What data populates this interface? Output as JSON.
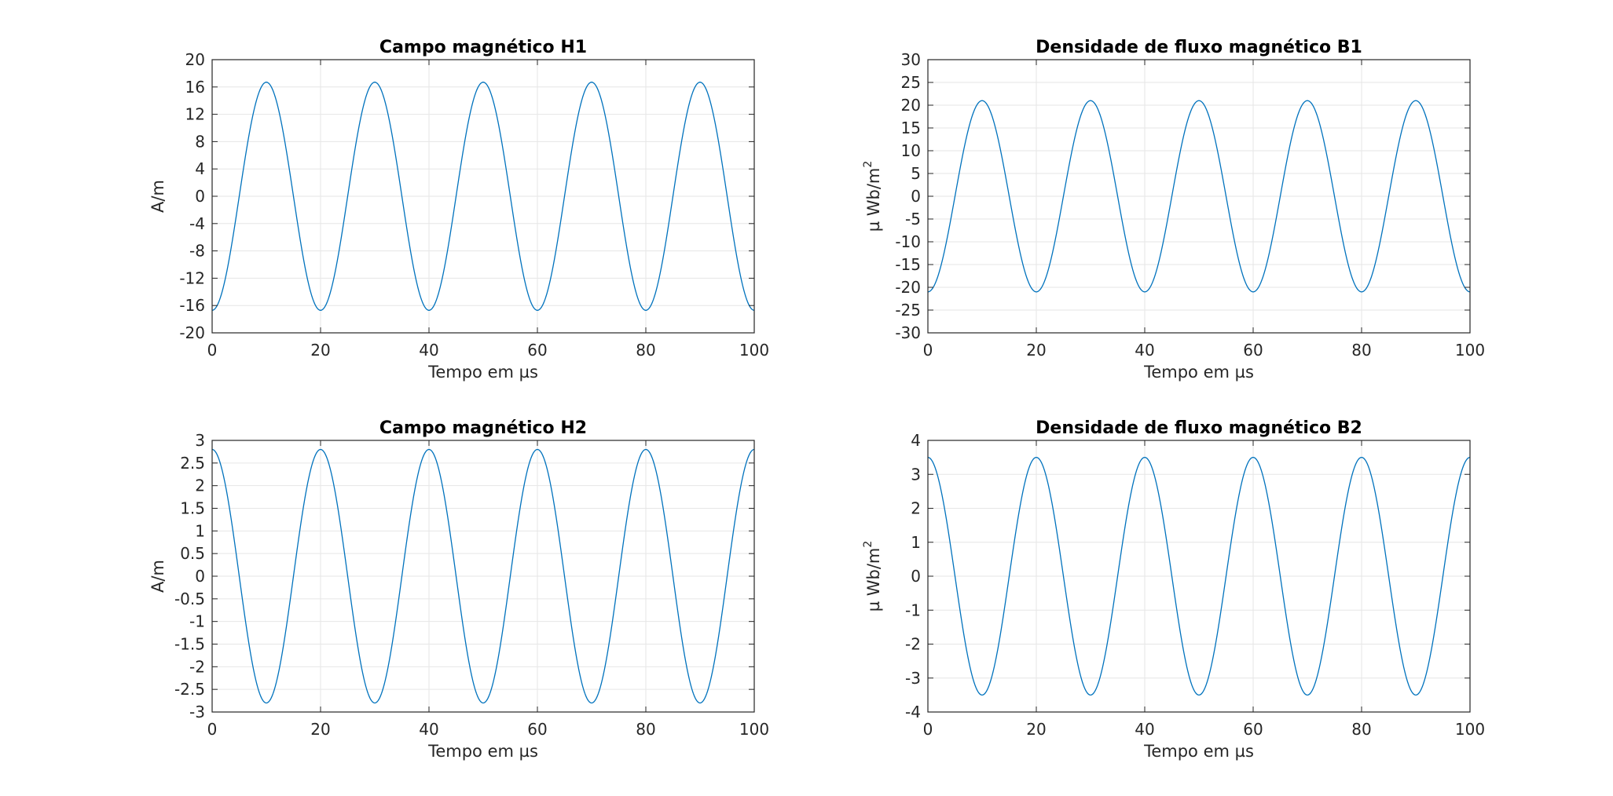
{
  "chart_data": [
    {
      "type": "line",
      "title": "Campo magnético H1",
      "xlabel": "Tempo em µs",
      "ylabel": "A/m",
      "ylabel_sup": "",
      "xlim": [
        0,
        100
      ],
      "ylim": [
        -20,
        20
      ],
      "xticks": [
        0,
        20,
        40,
        60,
        80,
        100
      ],
      "yticks": [
        -20,
        -16,
        -12,
        -8,
        -4,
        0,
        4,
        8,
        12,
        16,
        20
      ],
      "grid": true,
      "series": [
        {
          "amplitude": 16.7,
          "period": 20,
          "phase_deg": 180,
          "x": [
            0,
            10,
            20,
            30,
            40,
            50,
            60,
            70,
            80,
            90,
            100
          ],
          "y": [
            -16.7,
            16.7,
            -16.7,
            16.7,
            -16.7,
            16.7,
            -16.7,
            16.7,
            -16.7,
            16.7,
            -16.7
          ]
        }
      ]
    },
    {
      "type": "line",
      "title": "Densidade de fluxo magnético B1",
      "xlabel": "Tempo em µs",
      "ylabel": "µ Wb/m",
      "ylabel_sup": "2",
      "xlim": [
        0,
        100
      ],
      "ylim": [
        -30,
        30
      ],
      "xticks": [
        0,
        20,
        40,
        60,
        80,
        100
      ],
      "yticks": [
        -30,
        -25,
        -20,
        -15,
        -10,
        -5,
        0,
        5,
        10,
        15,
        20,
        25,
        30
      ],
      "grid": true,
      "series": [
        {
          "amplitude": 21,
          "period": 20,
          "phase_deg": 180,
          "x": [
            0,
            10,
            20,
            30,
            40,
            50,
            60,
            70,
            80,
            90,
            100
          ],
          "y": [
            -21,
            21,
            -21,
            21,
            -21,
            21,
            -21,
            21,
            -21,
            21,
            -21
          ]
        }
      ]
    },
    {
      "type": "line",
      "title": "Campo magnético H2",
      "xlabel": "Tempo em µs",
      "ylabel": "A/m",
      "ylabel_sup": "",
      "xlim": [
        0,
        100
      ],
      "ylim": [
        -3,
        3
      ],
      "xticks": [
        0,
        20,
        40,
        60,
        80,
        100
      ],
      "yticks": [
        -3,
        -2.5,
        -2,
        -1.5,
        -1,
        -0.5,
        0,
        0.5,
        1,
        1.5,
        2,
        2.5,
        3
      ],
      "grid": true,
      "series": [
        {
          "amplitude": 2.8,
          "period": 20,
          "phase_deg": 0,
          "x": [
            0,
            10,
            20,
            30,
            40,
            50,
            60,
            70,
            80,
            90,
            100
          ],
          "y": [
            2.8,
            -2.8,
            2.8,
            -2.8,
            2.8,
            -2.8,
            2.8,
            -2.8,
            2.8,
            -2.8,
            2.8
          ]
        }
      ]
    },
    {
      "type": "line",
      "title": "Densidade de fluxo magnético B2",
      "xlabel": "Tempo em µs",
      "ylabel": "µ Wb/m",
      "ylabel_sup": "2",
      "xlim": [
        0,
        100
      ],
      "ylim": [
        -4,
        4
      ],
      "xticks": [
        0,
        20,
        40,
        60,
        80,
        100
      ],
      "yticks": [
        -4,
        -3,
        -2,
        -1,
        0,
        1,
        2,
        3,
        4
      ],
      "grid": true,
      "series": [
        {
          "amplitude": 3.5,
          "period": 20,
          "phase_deg": 0,
          "x": [
            0,
            10,
            20,
            30,
            40,
            50,
            60,
            70,
            80,
            90,
            100
          ],
          "y": [
            3.5,
            -3.5,
            3.5,
            -3.5,
            3.5,
            -3.5,
            3.5,
            -3.5,
            3.5,
            -3.5,
            3.5
          ]
        }
      ]
    }
  ],
  "colors": {
    "line": "#0072bd",
    "grid": "#e6e6e6",
    "axis": "#262626"
  }
}
